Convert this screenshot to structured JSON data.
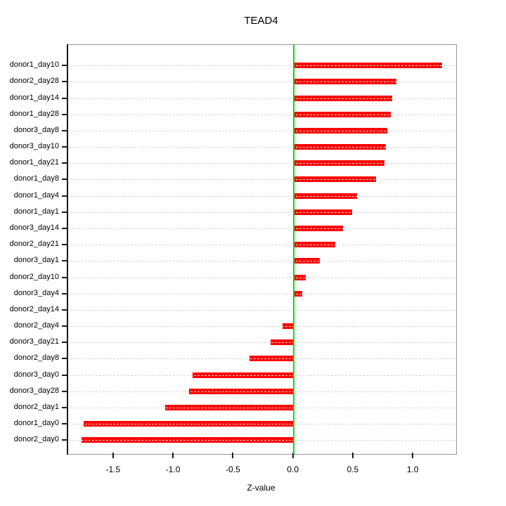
{
  "title": "TEAD4",
  "x_axis": {
    "label": "Z-value",
    "tick_labels": [
      "-1.5",
      "-1.0",
      "-0.5",
      "0.0",
      "0.5",
      "1.0"
    ],
    "tick_values": [
      -1.5,
      -1.0,
      -0.5,
      0.0,
      0.5,
      1.0
    ]
  },
  "colors": {
    "bar": "#fe0000",
    "zero_line": "#00e600",
    "grid": "#d7d7d7",
    "box_border": "#989898",
    "axis_and_ticks": "#1c1c1c",
    "text": "#000000",
    "background": "#ffffff"
  },
  "chart_data": {
    "type": "bar",
    "orientation": "horizontal",
    "title": "TEAD4",
    "xlabel": "Z-value",
    "ylabel": "",
    "xlim": [
      -1.886,
      1.356
    ],
    "grid": true,
    "zero_reference_line": 0,
    "legend": false,
    "categories": [
      "donor1_day10",
      "donor2_day28",
      "donor1_day14",
      "donor1_day28",
      "donor3_day8",
      "donor3_day10",
      "donor1_day21",
      "donor1_day8",
      "donor1_day4",
      "donor1_day1",
      "donor3_day14",
      "donor2_day21",
      "donor3_day1",
      "donor2_day10",
      "donor3_day4",
      "donor2_day14",
      "donor2_day4",
      "donor3_day21",
      "donor2_day8",
      "donor3_day0",
      "donor3_day28",
      "donor2_day1",
      "donor1_day0",
      "donor2_day0"
    ],
    "values": [
      1.24,
      0.86,
      0.82,
      0.81,
      0.78,
      0.77,
      0.76,
      0.69,
      0.53,
      0.49,
      0.41,
      0.35,
      0.22,
      0.1,
      0.07,
      0.003,
      -0.09,
      -0.19,
      -0.37,
      -0.84,
      -0.87,
      -1.07,
      -1.75,
      -1.77
    ]
  }
}
